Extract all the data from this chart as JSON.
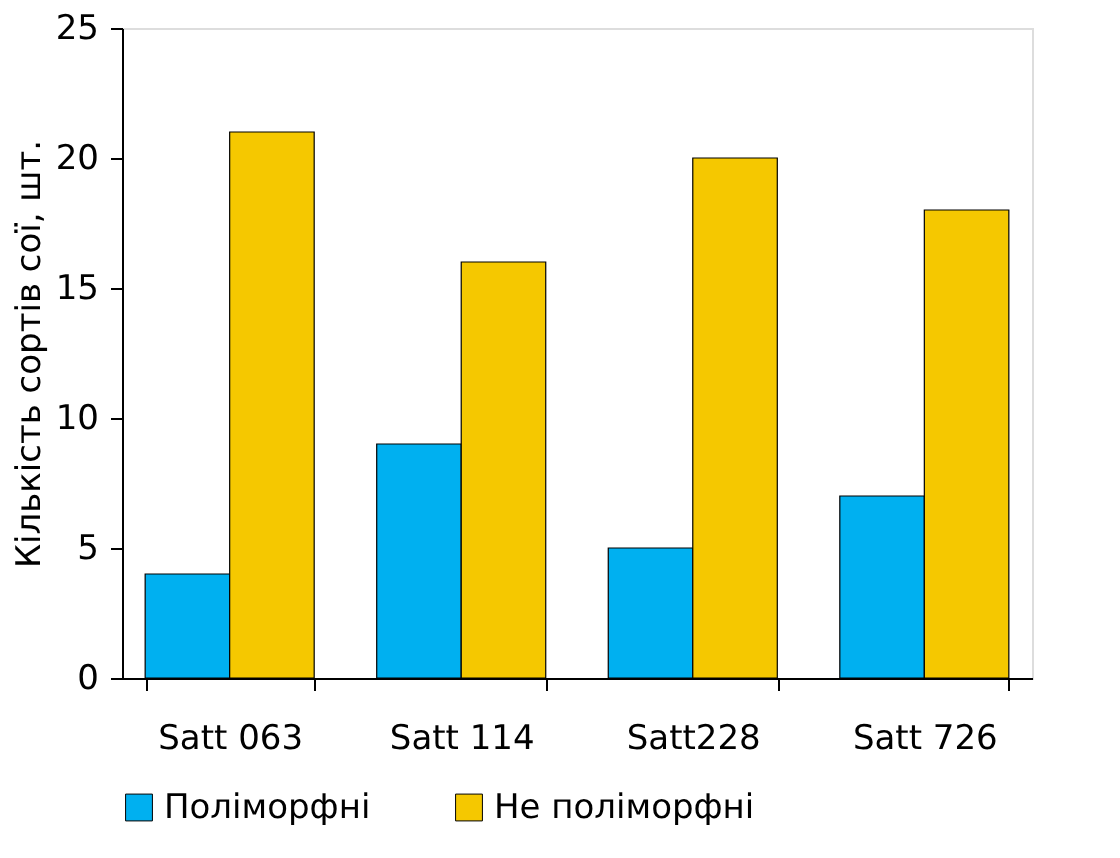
{
  "chart_data": {
    "type": "bar",
    "ylabel": "Кількість сортів сої, шт.",
    "categories": [
      "Satt 063",
      "Satt 114",
      "Satt228",
      "Satt 726"
    ],
    "series": [
      {
        "name": "Поліморфні",
        "color": "#00b0f0",
        "values": [
          4,
          9,
          5,
          7
        ]
      },
      {
        "name": "Не поліморфні",
        "color": "#f5c800",
        "values": [
          21,
          16,
          20,
          18
        ]
      }
    ],
    "ylim": [
      0,
      25
    ],
    "yticks": [
      0,
      5,
      10,
      15,
      20,
      25
    ],
    "grid": false,
    "legend": "bottom"
  }
}
